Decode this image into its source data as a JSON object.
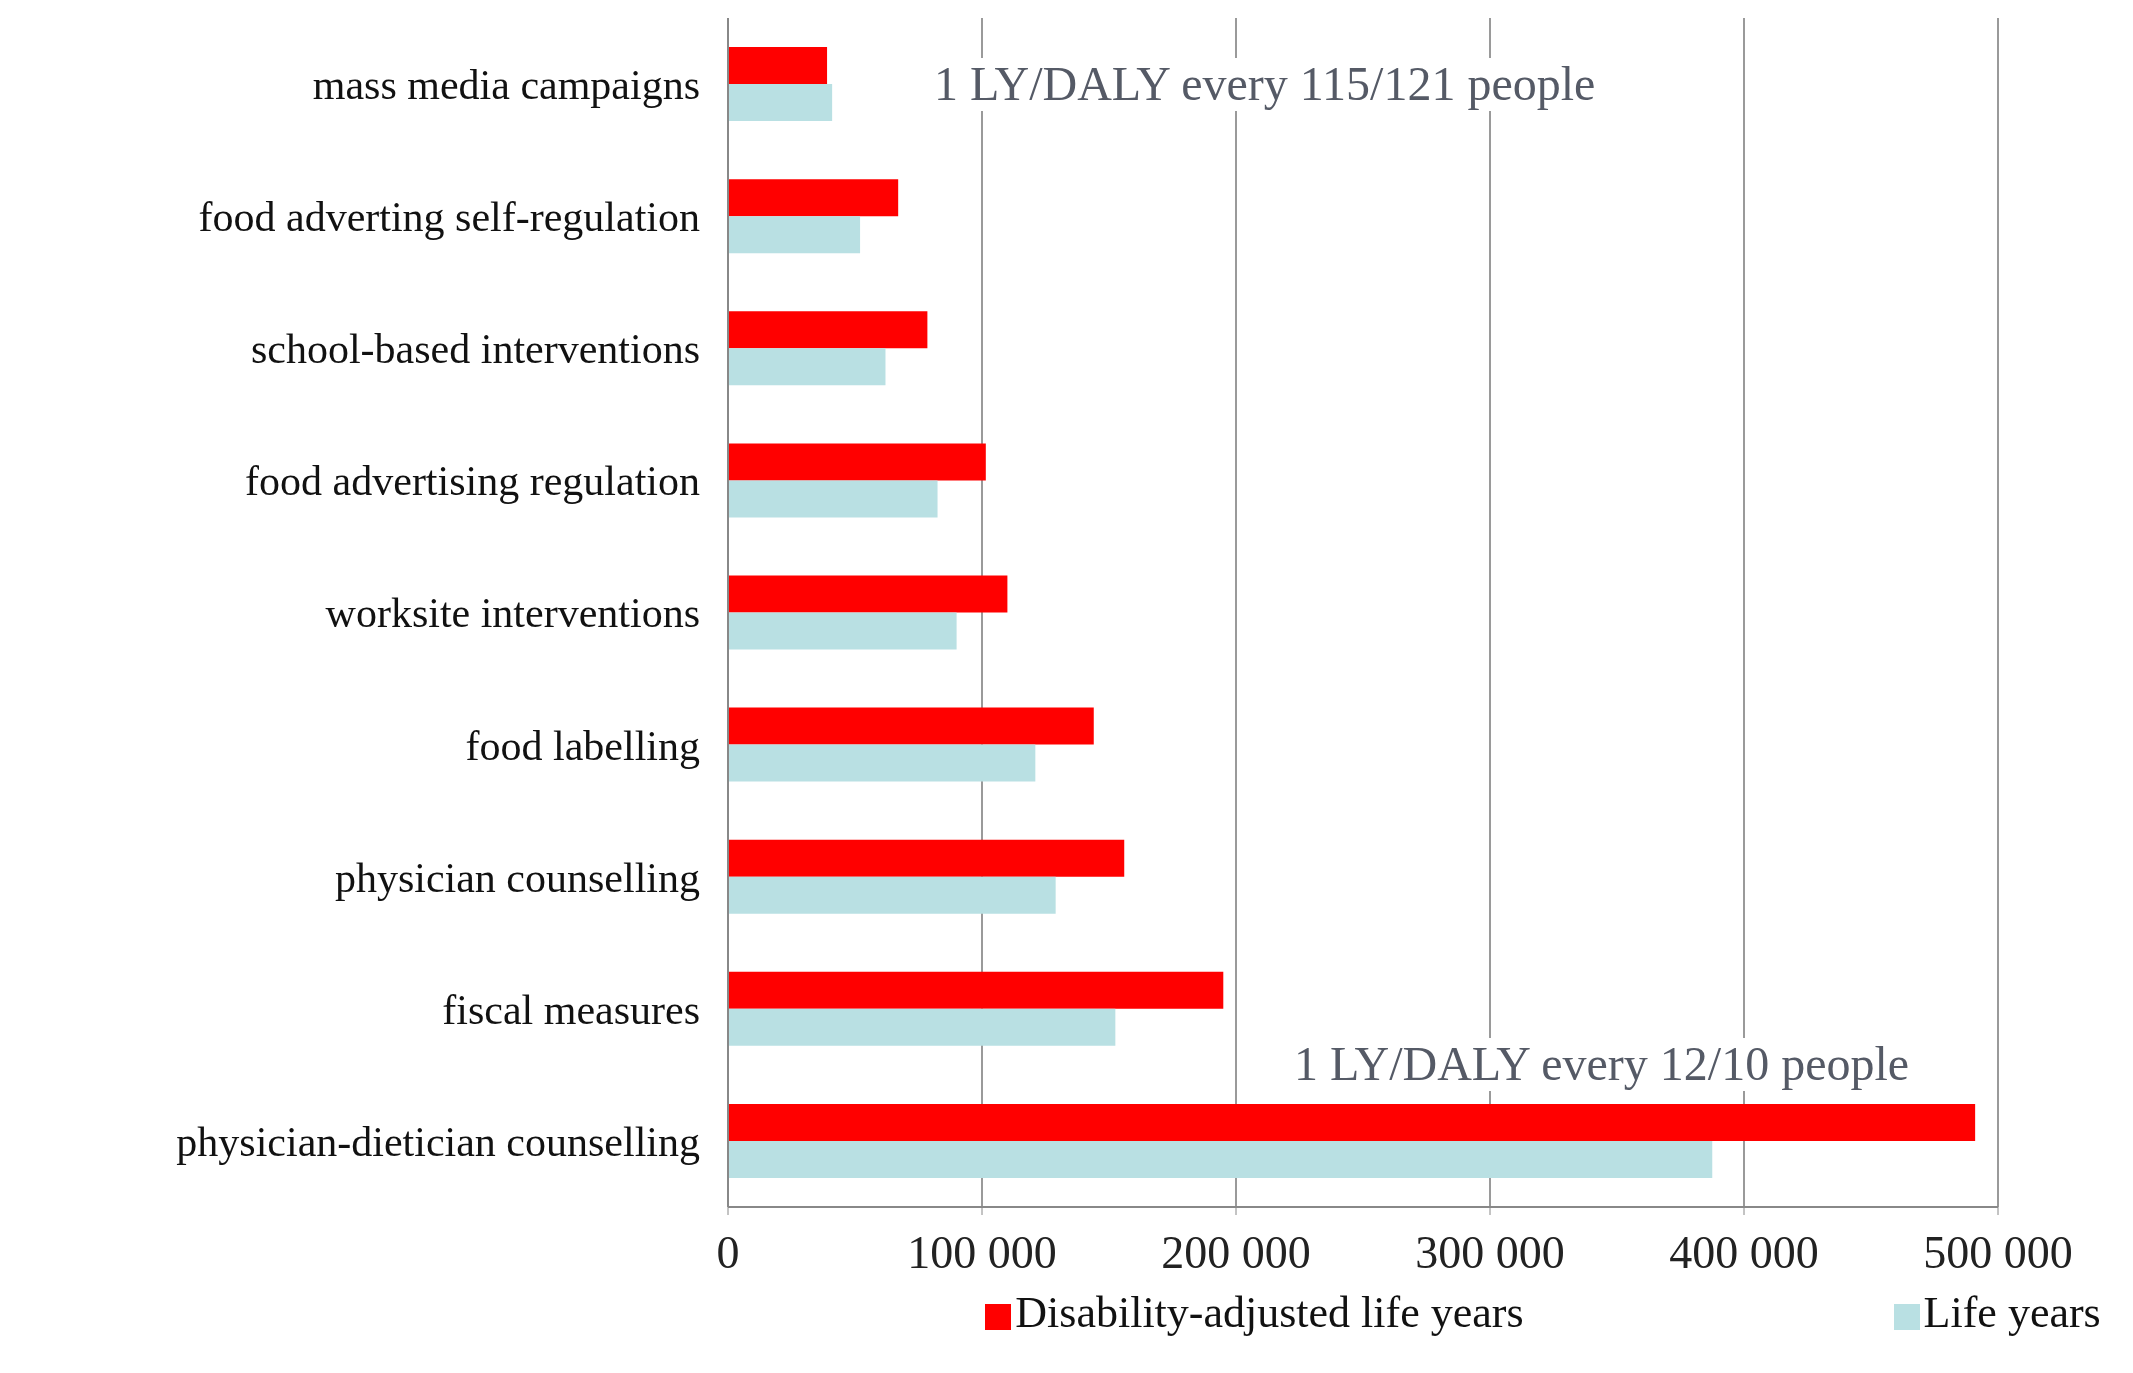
{
  "chart_data": {
    "type": "bar",
    "orientation": "horizontal",
    "categories": [
      "mass media campaigns",
      "food adverting self-regulation",
      "school-based interventions",
      "food advertising regulation",
      "worksite interventions",
      "food labelling",
      "physician counselling",
      "fiscal measures",
      "physician-dietician counselling"
    ],
    "series": [
      {
        "name": "Disability-adjusted life years",
        "color": "#ff0000",
        "values": [
          39000,
          67000,
          78500,
          101500,
          110000,
          144000,
          156000,
          195000,
          491000
        ]
      },
      {
        "name": "Life years",
        "color": "#b9e0e3",
        "values": [
          41000,
          52000,
          62000,
          82500,
          90000,
          121000,
          129000,
          152500,
          387500
        ]
      }
    ],
    "xlim": [
      0,
      500000
    ],
    "xticks": [
      {
        "value": 0,
        "label": "0"
      },
      {
        "value": 100000,
        "label": "100 000"
      },
      {
        "value": 200000,
        "label": "200 000"
      },
      {
        "value": 300000,
        "label": "300 000"
      },
      {
        "value": 400000,
        "label": "400 000"
      },
      {
        "value": 500000,
        "label": "500 000"
      }
    ],
    "grid": "x",
    "legend": "bottom",
    "annotations": [
      "1 LY/DALY every 115/121 people",
      "1 LY/DALY every 12/10 people"
    ]
  }
}
